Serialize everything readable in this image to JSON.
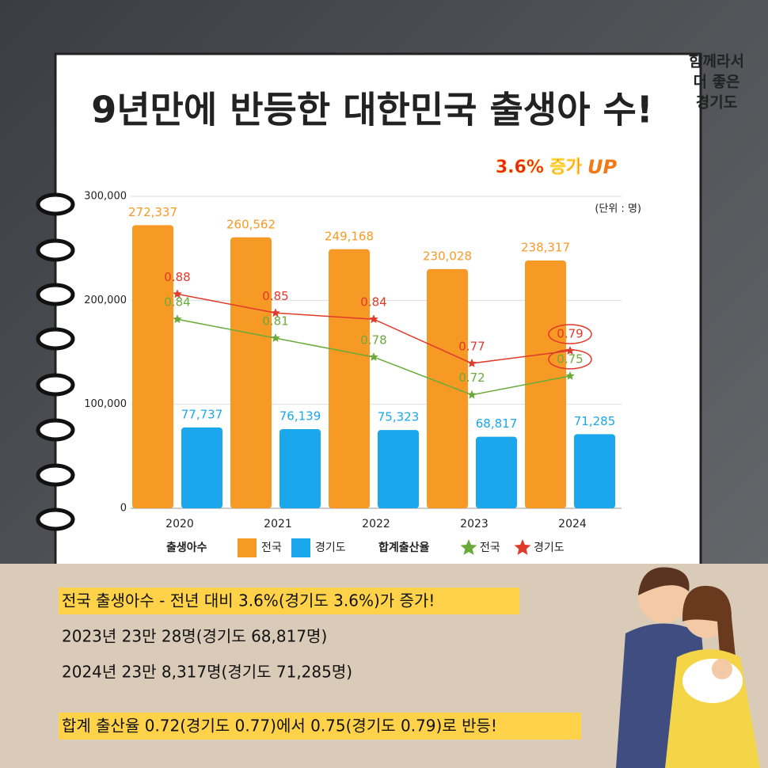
{
  "title": "9년만에 반등한 대한민국 출생아 수!",
  "badge": {
    "text": "3.6% 증가",
    "up": "UP"
  },
  "logo": [
    "함께라서",
    "더 좋은",
    "경기도"
  ],
  "notes": [
    "전국 출생아수 -  전년 대비 3.6%(경기도 3.6%)가 증가!",
    "2023년 23만 28명(경기도 68,817명)",
    "2024년 23만 8,317명(경기도 71,285명)",
    "합계 출산율 0.72(경기도 0.77)에서 0.75(경기도 0.79)로 반등!"
  ],
  "chart_data": {
    "type": "bar",
    "unit": "(단위 : 명)",
    "categories": [
      "2020",
      "2021",
      "2022",
      "2023",
      "2024"
    ],
    "legend_titles": [
      "출생아수",
      "합계출산율"
    ],
    "series": [
      {
        "name": "전국",
        "color": "#f79a25",
        "values": [
          272337,
          260562,
          249168,
          230028,
          238317
        ],
        "value_labels": [
          "272,337",
          "260,562",
          "249,168",
          "230,028",
          "238,317"
        ]
      },
      {
        "name": "경기도",
        "color": "#1aa7ec",
        "values": [
          77737,
          76139,
          75323,
          68817,
          71285
        ],
        "value_labels": [
          "77,737",
          "76,139",
          "75,323",
          "68,817",
          "71,285"
        ]
      },
      {
        "name": "전국",
        "type": "line",
        "axis": "y2",
        "color": "#6aaa3a",
        "values": [
          0.84,
          0.81,
          0.78,
          0.72,
          0.75
        ]
      },
      {
        "name": "경기도",
        "type": "line",
        "axis": "y2",
        "color": "#e03a2a",
        "values": [
          0.88,
          0.85,
          0.84,
          0.77,
          0.79
        ]
      }
    ],
    "ylim": [
      0,
      300000
    ],
    "yticks": [
      0,
      {
        "value": 100000,
        "label": "100,000"
      },
      {
        "value": 200000,
        "label": "200,000"
      },
      {
        "value": 300000,
        "label": "300,000"
      }
    ],
    "y2lim": [
      0.54,
      1.035
    ],
    "grid": true
  }
}
